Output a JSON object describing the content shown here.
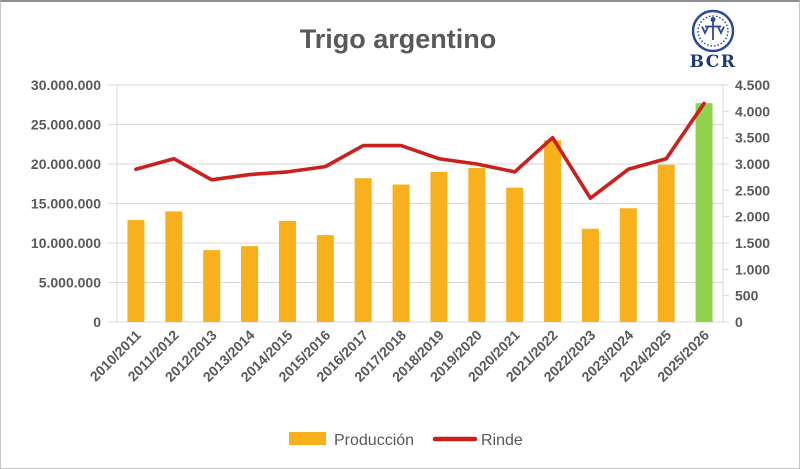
{
  "logo": {
    "text": "BCR"
  },
  "colors": {
    "bar": "#F8B01C",
    "bar_highlight": "#92D050",
    "line": "#C9211C",
    "grid": "#D9D9D9",
    "text": "#595959",
    "logo_blue": "#2C4A9A"
  },
  "chart_data": {
    "type": "bar+line",
    "title": "Trigo argentino",
    "categories": [
      "2010/2011",
      "2011/2012",
      "2012/2013",
      "2013/2014",
      "2014/2015",
      "2015/2016",
      "2016/2017",
      "2017/2018",
      "2018/2019",
      "2019/2020",
      "2020/2021",
      "2021/2022",
      "2022/2023",
      "2023/2024",
      "2024/2025",
      "2025/2026"
    ],
    "series": [
      {
        "name": "Producción",
        "type": "bar",
        "axis": "left",
        "values": [
          12900000,
          14000000,
          9100000,
          9600000,
          12800000,
          11000000,
          18200000,
          17400000,
          19000000,
          19500000,
          17000000,
          23000000,
          11800000,
          14400000,
          19900000,
          27700000
        ]
      },
      {
        "name": "Rinde",
        "type": "line",
        "axis": "right",
        "values": [
          2900,
          3100,
          2700,
          2800,
          2850,
          2950,
          3350,
          3350,
          3100,
          3000,
          2850,
          3500,
          2350,
          2900,
          3100,
          4150
        ]
      }
    ],
    "left_axis": {
      "min": 0,
      "max": 30000000,
      "step": 5000000,
      "tick_labels": [
        "0",
        "5.000.000",
        "10.000.000",
        "15.000.000",
        "20.000.000",
        "25.000.000",
        "30.000.000"
      ]
    },
    "right_axis": {
      "min": 0,
      "max": 4500,
      "step": 500,
      "tick_labels": [
        "0",
        "500",
        "1.000",
        "1.500",
        "2.000",
        "2.500",
        "3.000",
        "3.500",
        "4.000",
        "4.500"
      ]
    },
    "grid": true,
    "legend_position": "bottom",
    "x_label_rotation": 45,
    "highlight": {
      "category": "2025/2026",
      "bar_color": "#92D050"
    }
  }
}
